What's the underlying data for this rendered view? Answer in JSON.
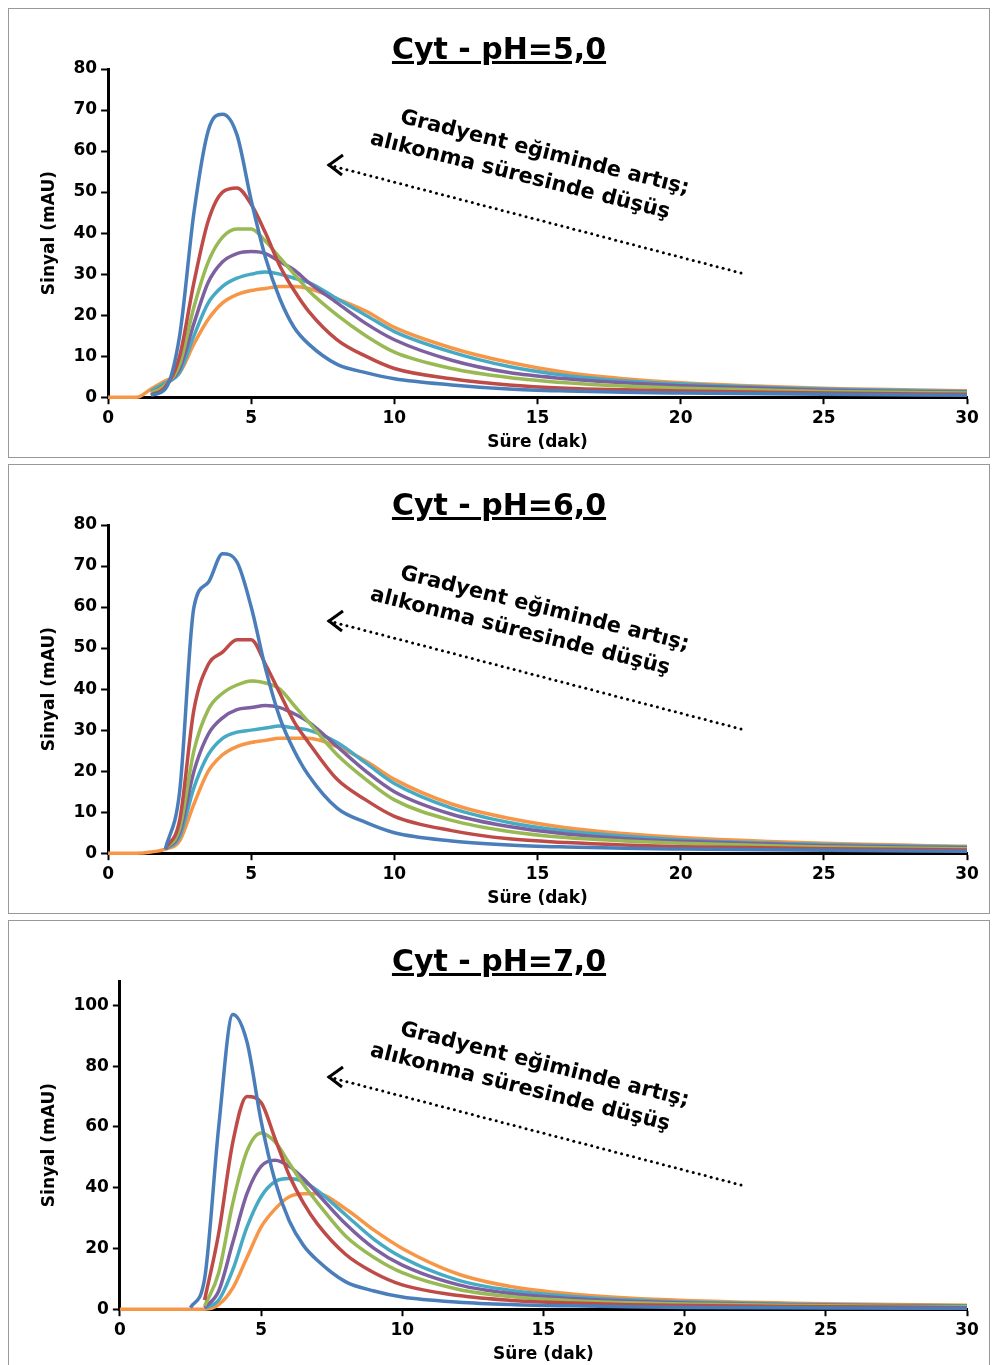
{
  "chart_data": [
    {
      "type": "line",
      "title": "Cyt - pH=5,0",
      "xlabel": "Süre (dak)",
      "ylabel": "Sinyal (mAU)",
      "annotations": [
        "Gradyent eğiminde artış;",
        "alıkonma süresinde düşüş"
      ],
      "marker": "none",
      "line_style": "solid",
      "grid": false,
      "legend": false,
      "xlim": [
        0,
        30
      ],
      "xticks": [
        0,
        5,
        10,
        15,
        20,
        25,
        30
      ],
      "ylim": [
        0,
        80
      ],
      "yticks": [
        0,
        10,
        20,
        30,
        40,
        50,
        60,
        70,
        80
      ],
      "x": [
        0,
        1,
        1.5,
        2,
        2.5,
        3,
        3.5,
        4,
        4.5,
        5,
        5.5,
        6,
        6.5,
        7,
        8,
        9,
        10,
        12,
        14,
        16,
        18,
        20,
        25,
        30
      ],
      "series": [
        {
          "color": "#4a7ebb",
          "values": [
            null,
            null,
            0.5,
            2,
            15,
            45,
            65,
            69,
            64,
            48,
            34,
            24,
            17,
            13,
            8,
            6,
            4.5,
            3,
            2,
            1.5,
            1.2,
            1,
            0.7,
            0.5
          ]
        },
        {
          "color": "#be4b48",
          "values": [
            null,
            null,
            0.5,
            2.5,
            10,
            28,
            43,
            50,
            51,
            47,
            40,
            32,
            26,
            21,
            14,
            10,
            7,
            4.5,
            3,
            2.2,
            1.8,
            1.5,
            1,
            0.7
          ]
        },
        {
          "color": "#98b954",
          "values": [
            null,
            null,
            1,
            3,
            8,
            22,
            33,
            39,
            41,
            41,
            38,
            34,
            30,
            26,
            20,
            15,
            11,
            7,
            4.8,
            3.5,
            2.7,
            2.2,
            1.4,
            1
          ]
        },
        {
          "color": "#7d60a0",
          "values": [
            null,
            null,
            1,
            3,
            7,
            18,
            28,
            33,
            35,
            35.5,
            35,
            33,
            31,
            28,
            23,
            18,
            14,
            9,
            6,
            4.5,
            3.5,
            2.8,
            1.7,
            1.2
          ]
        },
        {
          "color": "#46aac5",
          "values": [
            null,
            null,
            1.5,
            3.5,
            6,
            15,
            23,
            27,
            29,
            30,
            30.5,
            30,
            29,
            28,
            24,
            20,
            16,
            11,
            7.5,
            5.3,
            4,
            3.2,
            2,
            1.4
          ]
        },
        {
          "color": "#f79646",
          "values": [
            0,
            0,
            2,
            4,
            6,
            13,
            19,
            23,
            25,
            26,
            26.5,
            27,
            27,
            26.5,
            24,
            21,
            17,
            12,
            8.5,
            6,
            4.5,
            3.5,
            2.2,
            1.6
          ]
        }
      ]
    },
    {
      "type": "line",
      "title": "Cyt - pH=6,0",
      "xlabel": "Süre (dak)",
      "ylabel": "Sinyal (mAU)",
      "annotations": [
        "Gradyent eğiminde artış;",
        "alıkonma süresinde düşüş"
      ],
      "marker": "none",
      "line_style": "solid",
      "grid": false,
      "legend": false,
      "xlim": [
        0,
        30
      ],
      "xticks": [
        0,
        5,
        10,
        15,
        20,
        25,
        30
      ],
      "ylim": [
        0,
        80
      ],
      "yticks": [
        0,
        10,
        20,
        30,
        40,
        50,
        60,
        70,
        80
      ],
      "x": [
        0,
        1,
        1.5,
        2,
        2.5,
        3,
        3.5,
        4,
        4.5,
        5,
        5.5,
        6,
        6.5,
        7,
        8,
        9,
        10,
        12,
        14,
        16,
        18,
        20,
        25,
        30
      ],
      "series": [
        {
          "color": "#4a7ebb",
          "values": [
            null,
            null,
            null,
            1,
            15,
            60,
            66,
            73,
            71,
            60,
            45,
            33,
            25,
            19,
            11,
            7.5,
            5,
            3,
            2,
            1.5,
            1.2,
            1,
            0.7,
            0.5
          ]
        },
        {
          "color": "#be4b48",
          "values": [
            null,
            null,
            null,
            1,
            8,
            35,
            46,
            49,
            52,
            52,
            46,
            39,
            32,
            27,
            18,
            13,
            9,
            5.5,
            3.5,
            2.6,
            2,
            1.6,
            1.1,
            0.8
          ]
        },
        {
          "color": "#98b954",
          "values": [
            null,
            null,
            null,
            1,
            6,
            25,
            35,
            39,
            41,
            42,
            41.5,
            40,
            36,
            32,
            24,
            18,
            13,
            8,
            5.3,
            3.8,
            3,
            2.4,
            1.5,
            1.1
          ]
        },
        {
          "color": "#7d60a0",
          "values": [
            null,
            null,
            null,
            1,
            5,
            20,
            29,
            33,
            35,
            35.5,
            36,
            35.5,
            34,
            32,
            26,
            20,
            15,
            9.5,
            6.5,
            4.7,
            3.6,
            2.9,
            1.8,
            1.3
          ]
        },
        {
          "color": "#46aac5",
          "values": [
            null,
            null,
            null,
            1,
            4,
            16,
            24,
            28,
            29.5,
            30,
            30.5,
            31,
            30.5,
            30,
            27,
            22,
            17,
            11,
            7.5,
            5.4,
            4.2,
            3.3,
            2.1,
            1.5
          ]
        },
        {
          "color": "#f79646",
          "values": [
            0,
            0,
            0.3,
            1,
            3,
            12,
            20,
            24,
            26,
            27,
            27.5,
            28,
            28,
            28,
            26,
            22.5,
            18,
            12,
            8.5,
            6.2,
            4.8,
            3.8,
            2.4,
            1.7
          ]
        }
      ]
    },
    {
      "type": "line",
      "title": "Cyt - pH=7,0",
      "xlabel": "Süre (dak)",
      "ylabel": "Sinyal (mAU)",
      "annotations": [
        "Gradyent eğiminde artış;",
        "alıkonma süresinde düşüş"
      ],
      "marker": "none",
      "line_style": "solid",
      "grid": false,
      "legend": false,
      "xlim": [
        0,
        30
      ],
      "xticks": [
        0,
        5,
        10,
        15,
        20,
        25,
        30
      ],
      "ylim": [
        0,
        108
      ],
      "yticks": [
        0,
        20,
        40,
        60,
        80,
        100
      ],
      "x": [
        0,
        1,
        1.5,
        2,
        2.5,
        3,
        3.5,
        4,
        4.5,
        5,
        5.5,
        6,
        6.5,
        7,
        8,
        9,
        10,
        12,
        14,
        16,
        18,
        20,
        25,
        30
      ],
      "series": [
        {
          "color": "#4a7ebb",
          "values": [
            null,
            null,
            null,
            null,
            0.5,
            10,
            60,
            97,
            88,
            62,
            42,
            29,
            21,
            16,
            9,
            6,
            4,
            2.3,
            1.5,
            1.1,
            0.8,
            0.6,
            0.4,
            0.3
          ]
        },
        {
          "color": "#be4b48",
          "values": [
            null,
            null,
            null,
            null,
            null,
            3,
            25,
            55,
            70,
            68,
            56,
            44,
            35,
            28,
            18,
            12,
            8,
            4.5,
            2.8,
            2,
            1.5,
            1.2,
            0.8,
            0.5
          ]
        },
        {
          "color": "#98b954",
          "values": [
            null,
            null,
            null,
            null,
            null,
            1,
            12,
            35,
            52,
            58,
            55,
            48,
            41,
            35,
            24,
            17,
            12,
            6.5,
            4,
            2.8,
            2.1,
            1.7,
            1.1,
            0.8
          ]
        },
        {
          "color": "#7d60a0",
          "values": [
            null,
            null,
            null,
            null,
            null,
            0.5,
            6,
            22,
            38,
            47,
            49,
            47,
            43,
            38,
            28,
            20,
            14.5,
            8,
            5,
            3.5,
            2.6,
            2,
            1.3,
            0.9
          ]
        },
        {
          "color": "#46aac5",
          "values": [
            null,
            null,
            null,
            null,
            null,
            0.3,
            3,
            13,
            27,
            37,
            42,
            43,
            42,
            39,
            31,
            23,
            17,
            9.5,
            6,
            4.2,
            3.1,
            2.4,
            1.5,
            1.1
          ]
        },
        {
          "color": "#f79646",
          "values": [
            0,
            0,
            0,
            0,
            0,
            0,
            1.5,
            7,
            17,
            27,
            33,
            37,
            38,
            38,
            33,
            26,
            20,
            11.5,
            7.2,
            5,
            3.7,
            2.9,
            1.8,
            1.3
          ]
        }
      ]
    }
  ]
}
